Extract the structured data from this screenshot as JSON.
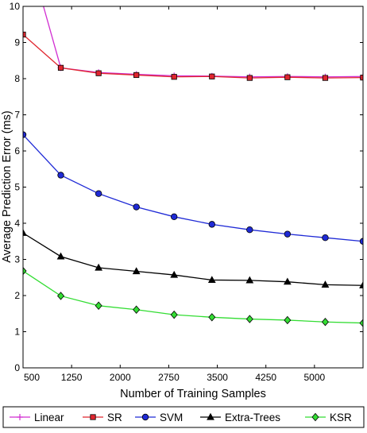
{
  "chart_data": {
    "type": "line",
    "title": "",
    "xlabel": "Number of Training Samples",
    "ylabel": "Average Prediction Error (ms)",
    "xlim": [
      500,
      5750
    ],
    "ylim": [
      0,
      10
    ],
    "x_ticks": [
      500,
      1250,
      2000,
      2750,
      3500,
      4250,
      5000
    ],
    "y_ticks": [
      0,
      1,
      2,
      3,
      4,
      5,
      6,
      7,
      8,
      9,
      10
    ],
    "grid": false,
    "legend_position": "bottom",
    "x": [
      500,
      1083,
      1667,
      2250,
      2833,
      3417,
      4000,
      4583,
      5167,
      5750
    ],
    "series": [
      {
        "name": "Linear",
        "color": "#d12ed1",
        "marker": "plus",
        "values": [
          12.0,
          8.3,
          8.17,
          8.12,
          8.08,
          8.07,
          8.05,
          8.06,
          8.05,
          8.06
        ]
      },
      {
        "name": "SR",
        "color": "#e0262f",
        "marker": "square",
        "values": [
          9.22,
          8.3,
          8.15,
          8.1,
          8.05,
          8.06,
          8.02,
          8.04,
          8.02,
          8.03
        ]
      },
      {
        "name": "SVM",
        "color": "#1f2ad6",
        "marker": "circle",
        "values": [
          6.45,
          5.33,
          4.82,
          4.45,
          4.18,
          3.97,
          3.82,
          3.7,
          3.6,
          3.5
        ]
      },
      {
        "name": "Extra-Trees",
        "color": "#000000",
        "marker": "triangle",
        "values": [
          3.73,
          3.08,
          2.77,
          2.67,
          2.57,
          2.43,
          2.42,
          2.38,
          2.3,
          2.28
        ]
      },
      {
        "name": "KSR",
        "color": "#33dd33",
        "marker": "diamond",
        "values": [
          2.68,
          1.99,
          1.72,
          1.61,
          1.47,
          1.4,
          1.35,
          1.32,
          1.27,
          1.24
        ]
      }
    ]
  }
}
